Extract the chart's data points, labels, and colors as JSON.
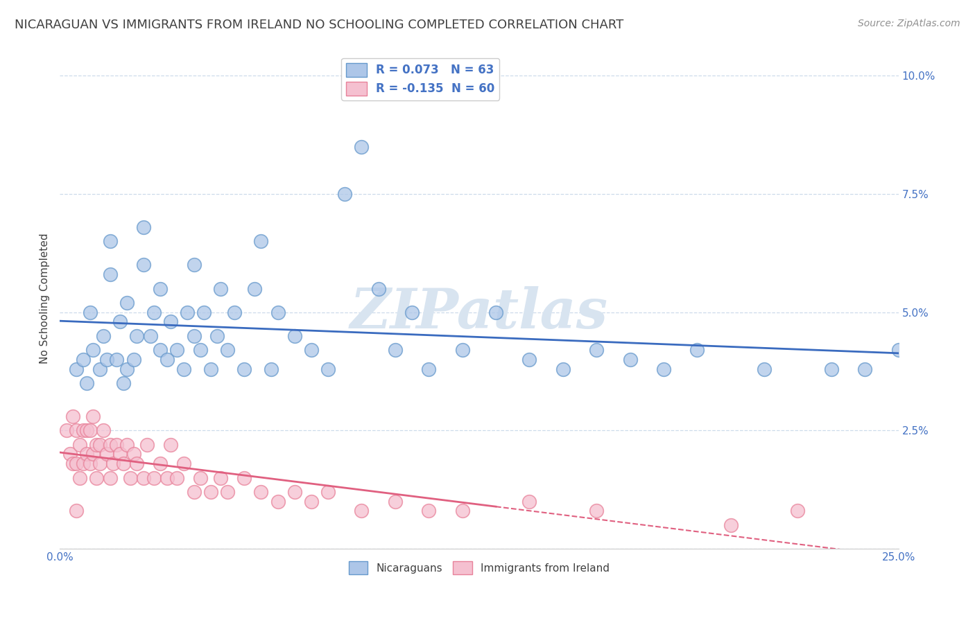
{
  "title": "NICARAGUAN VS IMMIGRANTS FROM IRELAND NO SCHOOLING COMPLETED CORRELATION CHART",
  "source": "Source: ZipAtlas.com",
  "ylabel": "No Schooling Completed",
  "ytick_vals": [
    0.0,
    0.025,
    0.05,
    0.075,
    0.1
  ],
  "xmin": 0.0,
  "xmax": 0.25,
  "ymin": 0.0,
  "ymax": 0.106,
  "nicaraguan_R": 0.073,
  "nicaraguan_N": 63,
  "ireland_R": -0.135,
  "ireland_N": 60,
  "blue_color": "#adc6e8",
  "blue_edge": "#6699cc",
  "pink_color": "#f5c0d0",
  "pink_edge": "#e8829a",
  "blue_line_color": "#3a6bbf",
  "pink_line_color": "#e06080",
  "legend_text_color": "#4472c4",
  "title_color": "#404040",
  "source_color": "#909090",
  "watermark_color": "#d8e4f0",
  "background_color": "#ffffff",
  "grid_color": "#c8d8e8",
  "nicaraguan_x": [
    0.005,
    0.007,
    0.008,
    0.009,
    0.01,
    0.012,
    0.013,
    0.014,
    0.015,
    0.015,
    0.017,
    0.018,
    0.019,
    0.02,
    0.02,
    0.022,
    0.023,
    0.025,
    0.025,
    0.027,
    0.028,
    0.03,
    0.03,
    0.032,
    0.033,
    0.035,
    0.037,
    0.038,
    0.04,
    0.04,
    0.042,
    0.043,
    0.045,
    0.047,
    0.048,
    0.05,
    0.052,
    0.055,
    0.058,
    0.06,
    0.063,
    0.065,
    0.07,
    0.075,
    0.08,
    0.085,
    0.09,
    0.095,
    0.1,
    0.105,
    0.11,
    0.12,
    0.13,
    0.14,
    0.15,
    0.16,
    0.17,
    0.18,
    0.19,
    0.21,
    0.23,
    0.24,
    0.25
  ],
  "nicaraguan_y": [
    0.038,
    0.04,
    0.035,
    0.05,
    0.042,
    0.038,
    0.045,
    0.04,
    0.058,
    0.065,
    0.04,
    0.048,
    0.035,
    0.038,
    0.052,
    0.04,
    0.045,
    0.06,
    0.068,
    0.045,
    0.05,
    0.042,
    0.055,
    0.04,
    0.048,
    0.042,
    0.038,
    0.05,
    0.045,
    0.06,
    0.042,
    0.05,
    0.038,
    0.045,
    0.055,
    0.042,
    0.05,
    0.038,
    0.055,
    0.065,
    0.038,
    0.05,
    0.045,
    0.042,
    0.038,
    0.075,
    0.085,
    0.055,
    0.042,
    0.05,
    0.038,
    0.042,
    0.05,
    0.04,
    0.038,
    0.042,
    0.04,
    0.038,
    0.042,
    0.038,
    0.038,
    0.038,
    0.042
  ],
  "ireland_x": [
    0.002,
    0.003,
    0.004,
    0.004,
    0.005,
    0.005,
    0.005,
    0.006,
    0.006,
    0.007,
    0.007,
    0.008,
    0.008,
    0.009,
    0.009,
    0.01,
    0.01,
    0.011,
    0.011,
    0.012,
    0.012,
    0.013,
    0.014,
    0.015,
    0.015,
    0.016,
    0.017,
    0.018,
    0.019,
    0.02,
    0.021,
    0.022,
    0.023,
    0.025,
    0.026,
    0.028,
    0.03,
    0.032,
    0.033,
    0.035,
    0.037,
    0.04,
    0.042,
    0.045,
    0.048,
    0.05,
    0.055,
    0.06,
    0.065,
    0.07,
    0.075,
    0.08,
    0.09,
    0.1,
    0.11,
    0.12,
    0.14,
    0.16,
    0.2,
    0.22
  ],
  "ireland_y": [
    0.025,
    0.02,
    0.028,
    0.018,
    0.025,
    0.018,
    0.008,
    0.022,
    0.015,
    0.025,
    0.018,
    0.02,
    0.025,
    0.018,
    0.025,
    0.02,
    0.028,
    0.022,
    0.015,
    0.022,
    0.018,
    0.025,
    0.02,
    0.015,
    0.022,
    0.018,
    0.022,
    0.02,
    0.018,
    0.022,
    0.015,
    0.02,
    0.018,
    0.015,
    0.022,
    0.015,
    0.018,
    0.015,
    0.022,
    0.015,
    0.018,
    0.012,
    0.015,
    0.012,
    0.015,
    0.012,
    0.015,
    0.012,
    0.01,
    0.012,
    0.01,
    0.012,
    0.008,
    0.01,
    0.008,
    0.008,
    0.01,
    0.008,
    0.005,
    0.008
  ]
}
